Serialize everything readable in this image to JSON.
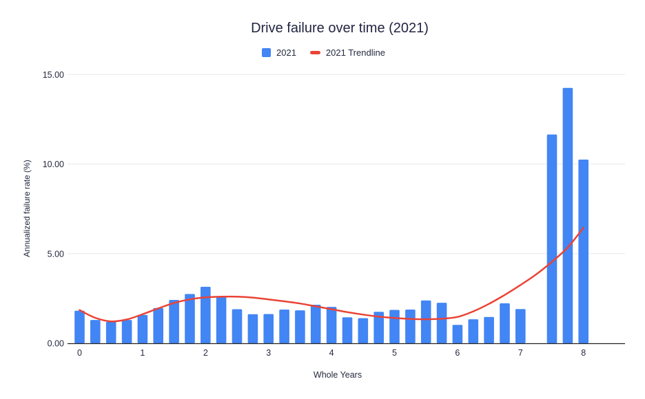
{
  "chart_data": {
    "type": "bar",
    "title": "Drive failure over time (2021)",
    "xlabel": "Whole Years",
    "ylabel": "Annualized failure rate (%)",
    "ylim": [
      0,
      15
    ],
    "yticks": [
      0,
      5,
      10,
      15
    ],
    "ytick_labels": [
      "0.00",
      "5.00",
      "10.00",
      "15.00"
    ],
    "xticks": [
      0,
      1,
      2,
      3,
      4,
      5,
      6,
      7,
      8
    ],
    "xtick_labels": [
      "0",
      "1",
      "2",
      "3",
      "4",
      "5",
      "6",
      "7",
      "8"
    ],
    "grid": "horizontal",
    "legend_position": "top",
    "background_color": "#ffffff",
    "gridline_color": "#e9e9e9",
    "axis_line_color": "#212121",
    "series": [
      {
        "name": "2021",
        "type": "bar",
        "color": "#4285f4",
        "x": [
          0.0,
          0.25,
          0.5,
          0.75,
          1.0,
          1.25,
          1.5,
          1.75,
          2.0,
          2.25,
          2.5,
          2.75,
          3.0,
          3.25,
          3.5,
          3.75,
          4.0,
          4.25,
          4.5,
          4.75,
          5.0,
          5.25,
          5.5,
          5.75,
          6.0,
          6.25,
          6.5,
          6.75,
          7.0,
          7.5,
          7.75,
          8.0
        ],
        "values": [
          1.82,
          1.3,
          1.2,
          1.3,
          1.58,
          1.97,
          2.42,
          2.75,
          3.15,
          2.6,
          1.9,
          1.62,
          1.63,
          1.88,
          1.84,
          2.15,
          2.03,
          1.45,
          1.4,
          1.76,
          1.86,
          1.88,
          2.39,
          2.26,
          1.03,
          1.34,
          1.47,
          2.23,
          1.91,
          11.65,
          14.25,
          10.25
        ]
      },
      {
        "name": "2021 Trendline",
        "type": "line",
        "color": "#ea4335",
        "x": [
          0.0,
          0.25,
          0.5,
          0.75,
          1.0,
          1.25,
          1.5,
          1.75,
          2.0,
          2.25,
          2.5,
          2.75,
          3.0,
          3.25,
          3.5,
          3.75,
          4.0,
          4.25,
          4.5,
          4.75,
          5.0,
          5.25,
          5.5,
          5.75,
          6.0,
          6.25,
          6.5,
          6.75,
          7.0,
          7.25,
          7.5,
          7.75,
          8.0
        ],
        "values": [
          1.85,
          1.42,
          1.22,
          1.33,
          1.62,
          1.95,
          2.25,
          2.45,
          2.56,
          2.6,
          2.6,
          2.55,
          2.45,
          2.34,
          2.22,
          2.06,
          1.9,
          1.74,
          1.6,
          1.49,
          1.41,
          1.36,
          1.34,
          1.37,
          1.47,
          1.78,
          2.2,
          2.7,
          3.25,
          3.85,
          4.55,
          5.35,
          6.45
        ]
      }
    ]
  }
}
